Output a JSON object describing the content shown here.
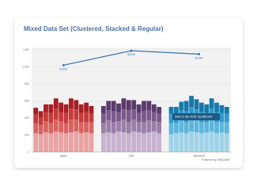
{
  "chart_data": {
    "type": "mixed",
    "title": "Mixed Data Set (Clustered, Stacked & Regular)",
    "groups": [
      "Apple",
      "Dell",
      "Microsoft"
    ],
    "bars_per_group": 12,
    "ylim": [
      0,
      120
    ],
    "yticks": [
      {
        "value": 0,
        "label": "0"
      },
      {
        "value": 20,
        "label": "20K"
      },
      {
        "value": 40,
        "label": "40K"
      },
      {
        "value": 60,
        "label": "60K"
      },
      {
        "value": 80,
        "label": "80K"
      },
      {
        "value": 100,
        "label": "100K"
      },
      {
        "value": 120,
        "label": "120K"
      }
    ],
    "grid": true,
    "stacks": [
      {
        "colors": [
          "#e9a3a3",
          "#c7b3cf",
          "#9fd3ea"
        ],
        "values": [
          22,
          21,
          23,
          22,
          24,
          23,
          22,
          23,
          24,
          22,
          23,
          22,
          22,
          23,
          22,
          24,
          23,
          22,
          24,
          23,
          22,
          23,
          24,
          22,
          21,
          22,
          23,
          22,
          24,
          23,
          22,
          23,
          24,
          22,
          23,
          22
        ]
      },
      {
        "colors": [
          "#d9625f",
          "#9b7fa8",
          "#5cb6dc"
        ],
        "values": [
          12,
          11,
          13,
          12,
          14,
          13,
          12,
          15,
          14,
          13,
          12,
          13,
          12,
          14,
          13,
          12,
          15,
          13,
          14,
          12,
          13,
          14,
          12,
          13,
          13,
          12,
          14,
          13,
          15,
          14,
          13,
          12,
          14,
          13,
          12,
          13
        ]
      },
      {
        "colors": [
          "#c73a3a",
          "#7a5a8c",
          "#2e9acb"
        ],
        "values": [
          10,
          9,
          11,
          12,
          13,
          11,
          12,
          13,
          12,
          11,
          12,
          10,
          11,
          12,
          13,
          11,
          12,
          14,
          12,
          11,
          13,
          12,
          11,
          10,
          11,
          10,
          12,
          13,
          14,
          13,
          12,
          11,
          13,
          12,
          11,
          10
        ]
      },
      {
        "colors": [
          "#a61e24",
          "#5b3a6e",
          "#1778ab"
        ],
        "values": [
          8,
          7,
          9,
          10,
          12,
          11,
          10,
          12,
          11,
          10,
          11,
          9,
          9,
          11,
          12,
          10,
          13,
          12,
          11,
          10,
          12,
          11,
          9,
          8,
          8,
          9,
          10,
          12,
          13,
          12,
          11,
          10,
          12,
          11,
          9,
          8
        ]
      }
    ],
    "line": {
      "color": "#2f6db3",
      "values": [
        102,
        119,
        115
      ],
      "value_labels": [
        "$102K",
        "$119K",
        "$115K"
      ]
    },
    "annotation": "Sells in Jan 2018: $1,886,000",
    "credit": "Powered by ZingChart"
  }
}
